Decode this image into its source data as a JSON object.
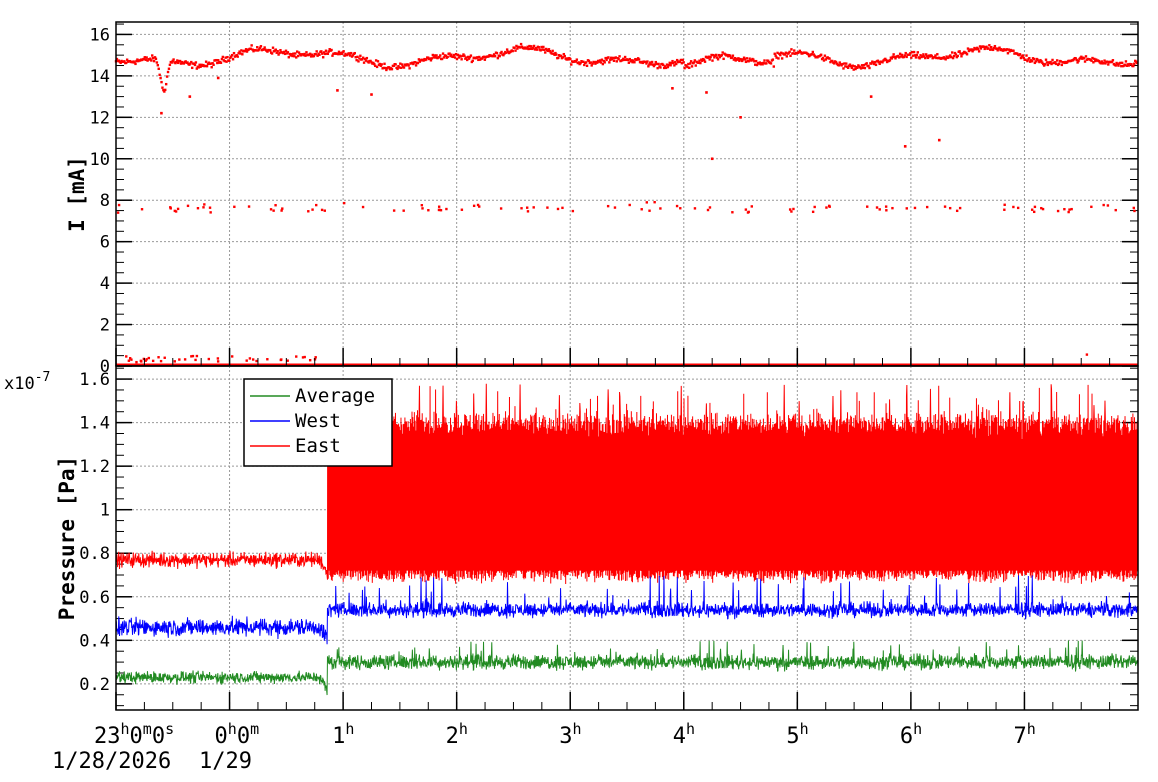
{
  "chart_data": [
    {
      "type": "scatter",
      "ylabel": "I [mA]",
      "ylim": [
        0,
        16.6
      ],
      "yticks": [
        "0",
        "2",
        "4",
        "6",
        "8",
        "10",
        "12",
        "14",
        "16"
      ],
      "ytick_values": [
        0,
        2,
        4,
        6,
        8,
        10,
        12,
        14,
        16
      ],
      "xlim_hours": [
        -1,
        8.0
      ],
      "grid": true,
      "series": [
        {
          "color": "#ff0000",
          "main_band": {
            "baseline": 14.9,
            "spread": 0.45
          },
          "dips": [
            {
              "x": -0.6,
              "y": 12.2
            },
            {
              "x": -0.1,
              "y": 13.9
            },
            {
              "x": 0.95,
              "y": 13.3
            },
            {
              "x": 1.25,
              "y": 13.1
            },
            {
              "x": 3.9,
              "y": 13.4
            },
            {
              "x": 4.2,
              "y": 13.2
            },
            {
              "x": 4.5,
              "y": 12.0
            },
            {
              "x": 4.25,
              "y": 10.0
            },
            {
              "x": 5.65,
              "y": 13.0
            },
            {
              "x": 5.95,
              "y": 10.6
            },
            {
              "x": 6.25,
              "y": 10.9
            },
            {
              "x": -0.35,
              "y": 13.0
            }
          ],
          "secondary_band": {
            "center": 7.6,
            "spread": 0.35
          },
          "zero_points": {
            "center": 0.35,
            "spread": 0.25,
            "x_range": [
              -1,
              0.8
            ]
          }
        }
      ]
    },
    {
      "type": "line",
      "ylabel": "Pressure [Pa]",
      "yexp": "x10",
      "yexp_power": "-7",
      "ylim": [
        0.08,
        1.66
      ],
      "yticks": [
        "0.2",
        "0.4",
        "0.6",
        "0.8",
        "1",
        "1.2",
        "1.4",
        "1.6"
      ],
      "ytick_values": [
        0.2,
        0.4,
        0.6,
        0.8,
        1.0,
        1.2,
        1.4,
        1.6
      ],
      "xlim_hours": [
        -1,
        8.0
      ],
      "grid": true,
      "legend_position": "top-left",
      "series": [
        {
          "name": "Average",
          "color": "#228b22",
          "before": {
            "base": 0.23,
            "noise": 0.04
          },
          "after": {
            "base": 0.3,
            "noise": 0.05,
            "spike": 0.4
          }
        },
        {
          "name": "West",
          "color": "#0000ff",
          "before": {
            "base": 0.46,
            "noise": 0.06
          },
          "after": {
            "base": 0.54,
            "noise": 0.05,
            "spike": 0.7
          }
        },
        {
          "name": "East",
          "color": "#ff0000",
          "before": {
            "base": 0.77,
            "noise": 0.05
          },
          "after": {
            "base": 0.7,
            "high": 1.4,
            "spike": 1.58
          }
        }
      ],
      "transition_hours": 0.86
    }
  ],
  "xaxis": {
    "ticks": [
      {
        "hour": -1,
        "label": "23",
        "sup": "h",
        "label2": "0",
        "sup2": "m",
        "label3": "0",
        "sup3": "s"
      },
      {
        "hour": 0,
        "label": "0",
        "sup": "h",
        "label2": "0",
        "sup2": "m"
      },
      {
        "hour": 1,
        "label": "1",
        "sup": "h"
      },
      {
        "hour": 2,
        "label": "2",
        "sup": "h"
      },
      {
        "hour": 3,
        "label": "3",
        "sup": "h"
      },
      {
        "hour": 4,
        "label": "4",
        "sup": "h"
      },
      {
        "hour": 5,
        "label": "5",
        "sup": "h"
      },
      {
        "hour": 6,
        "label": "6",
        "sup": "h"
      },
      {
        "hour": 7,
        "label": "7",
        "sup": "h"
      }
    ],
    "date_labels": [
      "1/28/2026",
      "1/29"
    ]
  }
}
